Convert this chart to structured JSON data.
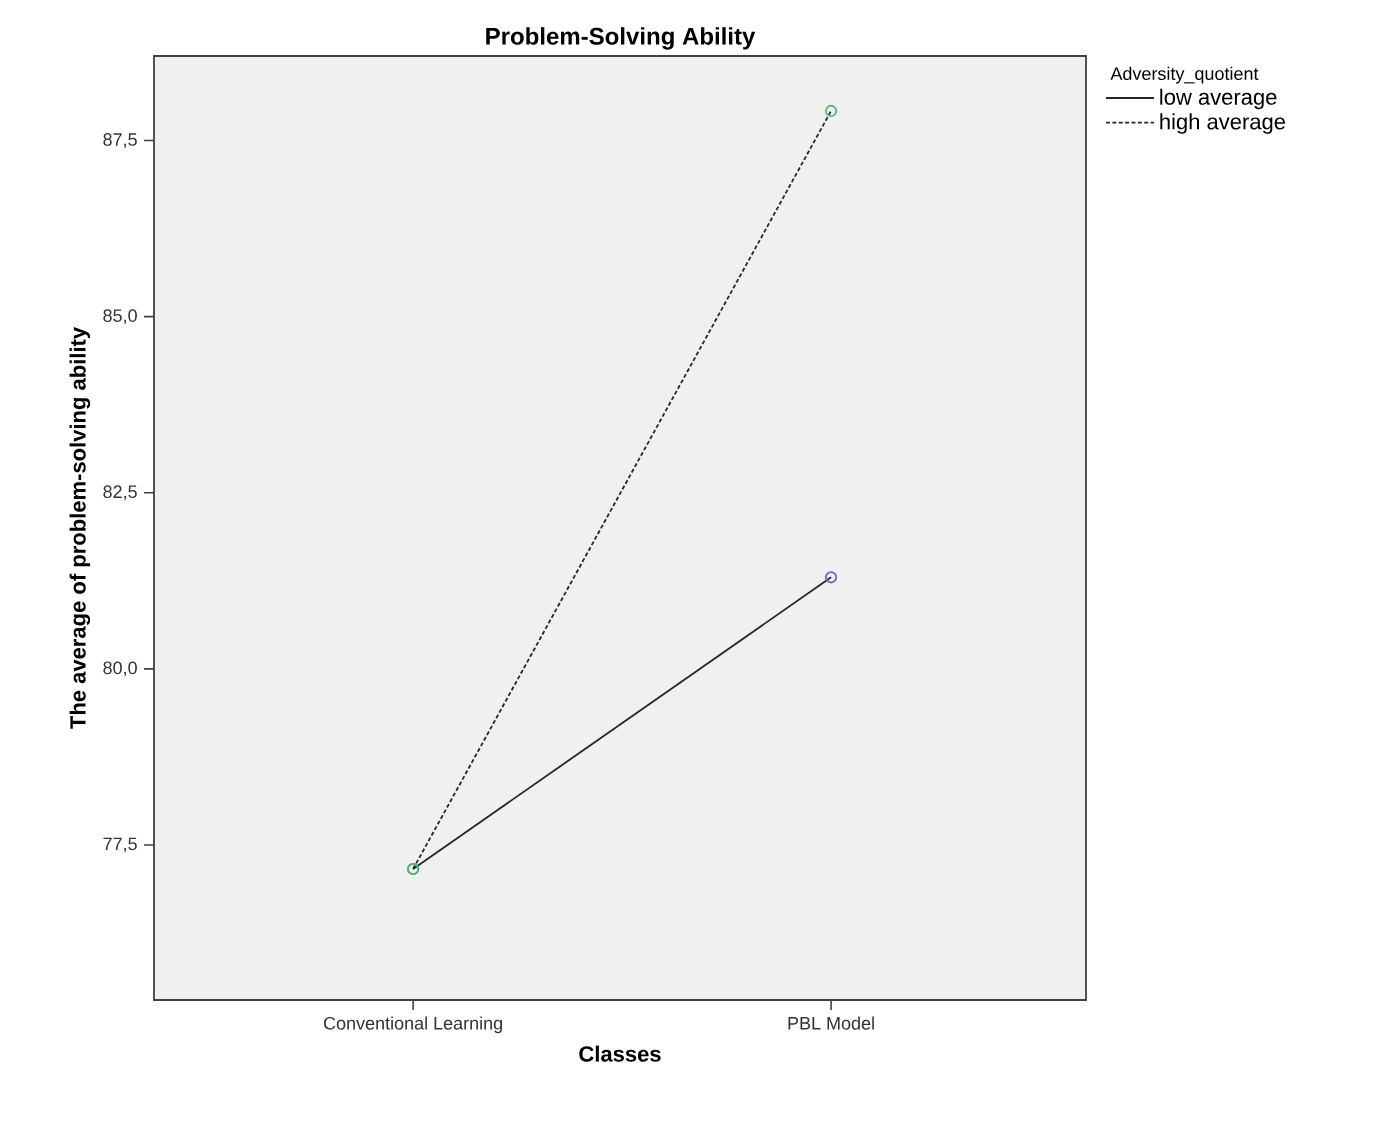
{
  "chart_data": {
    "type": "line",
    "title": "Problem-Solving Ability",
    "xlabel": "Classes",
    "ylabel": "The average of problem-solving ability",
    "legend_title": "Adversity_quotient",
    "categories": [
      "Conventional Learning",
      "PBL Model"
    ],
    "series": [
      {
        "name": "low average",
        "color": "#5b6fb8",
        "line_style": "solid",
        "values": [
          77.16,
          81.3
        ]
      },
      {
        "name": "high average",
        "color": "#4fbf6a",
        "line_style": "dashed",
        "values": [
          77.16,
          87.92
        ]
      }
    ],
    "ylim": [
      75.3,
      88.7
    ],
    "yticks": [
      {
        "value": 77.5,
        "label": "77,5"
      },
      {
        "value": 80.0,
        "label": "80,0"
      },
      {
        "value": 82.5,
        "label": "82,5"
      },
      {
        "value": 85.0,
        "label": "85,0"
      },
      {
        "value": 87.5,
        "label": "87,5"
      }
    ],
    "grid": false,
    "legend": "top right",
    "marker": "circle"
  }
}
